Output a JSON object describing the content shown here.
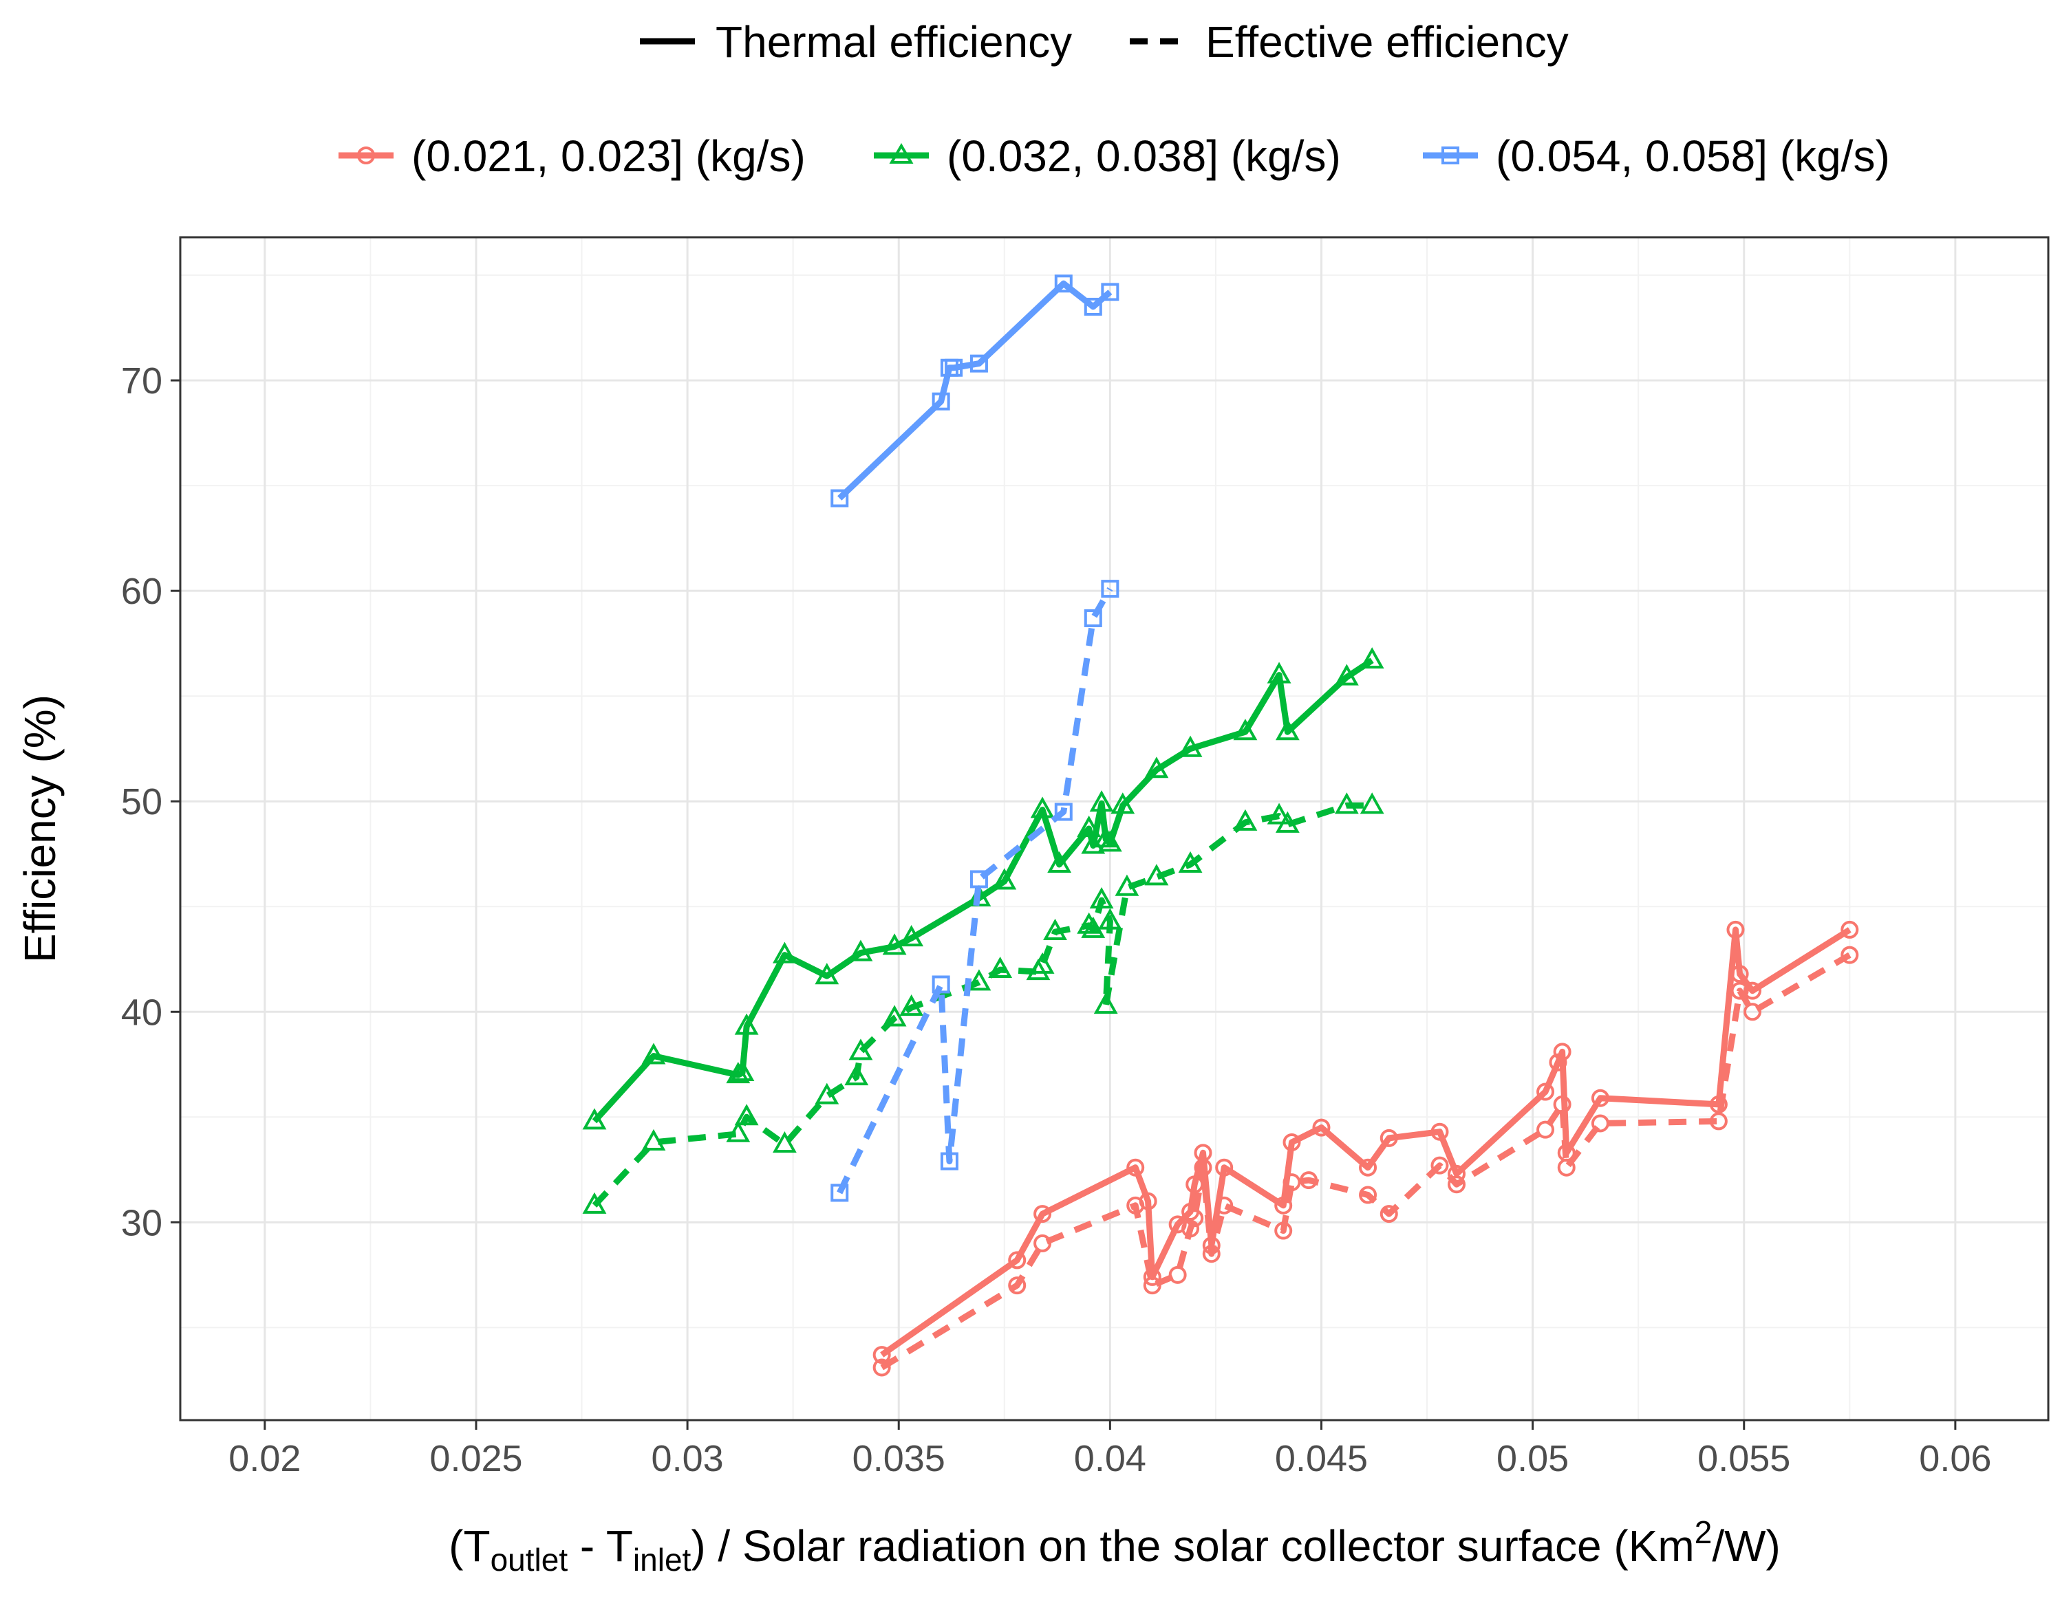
{
  "chart_data": {
    "type": "line",
    "title": "",
    "xlabel": {
      "prefix": "(T",
      "sub1": "outlet",
      "mid": " - T",
      "sub2": "inlet",
      "rest": ") / Solar radiation on the solar collector surface (Km",
      "sup": "2",
      "suffix": "/W)"
    },
    "ylabel": "Efficiency (%)",
    "xlim": [
      0.018,
      0.0622
    ],
    "ylim": [
      20.6,
      76.8
    ],
    "x_ticks": [
      0.02,
      0.025,
      0.03,
      0.035,
      0.04,
      0.045,
      0.05,
      0.055,
      0.06
    ],
    "x_tick_labels": [
      "0.02",
      "0.025",
      "0.03",
      "0.035",
      "0.04",
      "0.045",
      "0.05",
      "0.055",
      "0.06"
    ],
    "x_minor_ticks": [
      0.0225,
      0.0275,
      0.0325,
      0.0375,
      0.0425,
      0.0475,
      0.0525,
      0.0575
    ],
    "y_ticks": [
      30,
      40,
      50,
      60,
      70
    ],
    "y_tick_labels": [
      "30",
      "40",
      "50",
      "60",
      "70"
    ],
    "y_minor_ticks": [
      25,
      35,
      45,
      55,
      65,
      75
    ],
    "grid": true,
    "legend": {
      "linetype_items": [
        {
          "label": "Thermal efficiency",
          "dash": "solid"
        },
        {
          "label": "Effective efficiency",
          "dash": "dashed"
        }
      ],
      "group_items": [
        {
          "label": "(0.021, 0.023] (kg/s)",
          "color": "#F8766D",
          "marker": "circle"
        },
        {
          "label": "(0.032, 0.038] (kg/s)",
          "color": "#00BA38",
          "marker": "triangle"
        },
        {
          "label": "(0.054, 0.058] (kg/s)",
          "color": "#619CFF",
          "marker": "square"
        }
      ],
      "placement": "top"
    },
    "series": [
      {
        "name": "(0.021, 0.023] (kg/s) Thermal efficiency",
        "color": "#F8766D",
        "marker": "circle",
        "dash": "solid",
        "x": [
          0.0346,
          0.0378,
          0.0384,
          0.0406,
          0.0409,
          0.041,
          0.0416,
          0.0419,
          0.042,
          0.0422,
          0.0424,
          0.0427,
          0.0441,
          0.0443,
          0.045,
          0.0461,
          0.0466,
          0.0478,
          0.0482,
          0.0503,
          0.0506,
          0.0507,
          0.0508,
          0.0516,
          0.0544,
          0.0548,
          0.0549,
          0.0552,
          0.0575
        ],
        "y": [
          23.7,
          28.2,
          30.4,
          32.6,
          31.0,
          27.4,
          29.9,
          30.5,
          31.8,
          33.3,
          28.9,
          32.6,
          30.8,
          33.8,
          34.5,
          32.6,
          34.0,
          34.3,
          32.3,
          36.2,
          37.6,
          38.1,
          33.3,
          35.9,
          35.6,
          43.9,
          41.8,
          41.0,
          43.9
        ]
      },
      {
        "name": "(0.021, 0.023] (kg/s) Effective efficiency",
        "color": "#F8766D",
        "marker": "circle",
        "dash": "dashed",
        "x": [
          0.0346,
          0.0378,
          0.0384,
          0.0406,
          0.041,
          0.0416,
          0.0419,
          0.042,
          0.0422,
          0.0424,
          0.0427,
          0.0441,
          0.0443,
          0.0447,
          0.0461,
          0.0466,
          0.0478,
          0.0482,
          0.0503,
          0.0507,
          0.0508,
          0.0516,
          0.0544,
          0.0549,
          0.0552,
          0.0575
        ],
        "y": [
          23.1,
          27.0,
          29.0,
          30.8,
          27.0,
          27.5,
          29.7,
          30.2,
          32.6,
          28.5,
          30.8,
          29.6,
          31.9,
          32.0,
          31.3,
          30.4,
          32.7,
          31.8,
          34.4,
          35.6,
          32.6,
          34.7,
          34.8,
          41.0,
          40.0,
          42.7
        ]
      },
      {
        "name": "(0.032, 0.038] (kg/s) Thermal efficiency",
        "color": "#00BA38",
        "marker": "triangle",
        "dash": "solid",
        "x": [
          0.0278,
          0.0292,
          0.0312,
          0.0313,
          0.0314,
          0.0323,
          0.0333,
          0.0341,
          0.0349,
          0.0353,
          0.0369,
          0.0375,
          0.0384,
          0.0388,
          0.0395,
          0.0396,
          0.0398,
          0.0399,
          0.04,
          0.0403,
          0.0411,
          0.0419,
          0.0432,
          0.044,
          0.0442,
          0.0456,
          0.0462
        ],
        "y": [
          34.8,
          37.9,
          37.0,
          37.1,
          39.3,
          42.7,
          41.7,
          42.8,
          43.1,
          43.5,
          45.4,
          46.2,
          49.6,
          47.0,
          48.7,
          47.9,
          49.9,
          48.2,
          48.0,
          49.8,
          51.5,
          52.5,
          53.3,
          56.0,
          53.3,
          55.9,
          56.7
        ]
      },
      {
        "name": "(0.032, 0.038] (kg/s) Effective efficiency",
        "color": "#00BA38",
        "marker": "triangle",
        "dash": "dashed",
        "x": [
          0.0278,
          0.0292,
          0.0312,
          0.0314,
          0.0323,
          0.0333,
          0.034,
          0.0341,
          0.0349,
          0.0353,
          0.0369,
          0.0374,
          0.0383,
          0.0384,
          0.0387,
          0.0395,
          0.0396,
          0.0398,
          0.04,
          0.0399,
          0.0404,
          0.0411,
          0.0419,
          0.0432,
          0.044,
          0.0442,
          0.0456,
          0.0462
        ],
        "y": [
          30.8,
          33.8,
          34.2,
          35.0,
          33.7,
          36.0,
          36.9,
          38.1,
          39.7,
          40.2,
          41.4,
          42.0,
          41.9,
          42.2,
          43.8,
          44.1,
          43.9,
          45.3,
          44.3,
          40.3,
          45.9,
          46.4,
          47.0,
          49.0,
          49.3,
          48.9,
          49.8,
          49.8
        ]
      },
      {
        "name": "(0.054, 0.058] (kg/s) Thermal efficiency",
        "color": "#619CFF",
        "marker": "square",
        "dash": "solid",
        "x": [
          0.0336,
          0.036,
          0.0362,
          0.0363,
          0.0369,
          0.0389,
          0.0396,
          0.04
        ],
        "y": [
          64.4,
          69.0,
          70.6,
          70.6,
          70.8,
          74.6,
          73.5,
          74.2
        ]
      },
      {
        "name": "(0.054, 0.058] (kg/s) Effective efficiency",
        "color": "#619CFF",
        "marker": "square",
        "dash": "dashed",
        "x": [
          0.0336,
          0.036,
          0.0362,
          0.0369,
          0.0389,
          0.0396,
          0.04
        ],
        "y": [
          31.4,
          41.3,
          32.9,
          46.3,
          49.5,
          58.7,
          60.1
        ]
      }
    ]
  }
}
